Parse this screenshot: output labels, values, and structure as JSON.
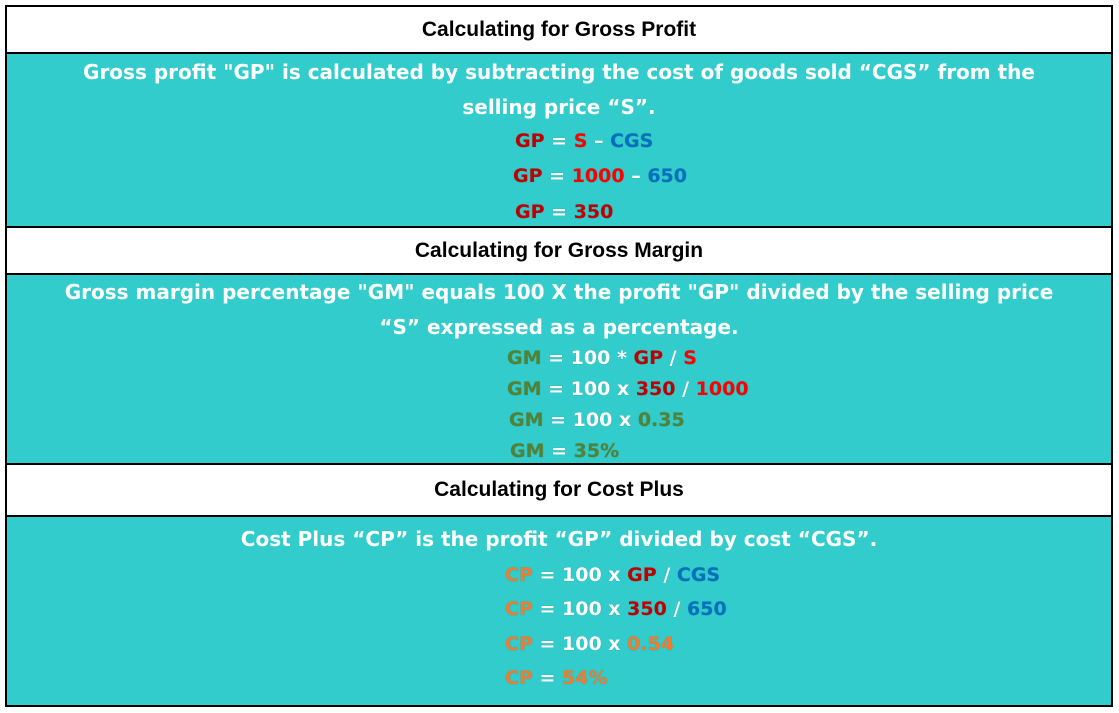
{
  "colors": {
    "gp": "#c00000",
    "s": "#ff0000",
    "cgs": "#0070c0",
    "gm": "#548235",
    "cp": "#ed7d31",
    "panel_bg": "#33cccc"
  },
  "gross_profit": {
    "header": "Calculating for Gross Profit",
    "desc_line1": "Gross profit \"GP\" is calculated by subtracting the cost of goods sold “CGS” from the",
    "desc_line2": "selling price “S”.",
    "f1": {
      "lhs": "GP",
      "eq": " = ",
      "a": "S",
      "op": " – ",
      "b": "CGS"
    },
    "f2": {
      "lhs": "GP",
      "eq": " = ",
      "a": "1000",
      "op": " – ",
      "b": "650"
    },
    "f3": {
      "lhs": "GP",
      "eq": " = ",
      "a": "350"
    }
  },
  "gross_margin": {
    "header": "Calculating for Gross Margin",
    "desc_line1": "Gross margin percentage \"GM\" equals 100 X the profit \"GP\" divided by the selling price",
    "desc_line2": "“S” expressed as a percentage.",
    "f1": {
      "lhs": "GM",
      "eq": " = 100 * ",
      "a": "GP",
      "op": " / ",
      "b": "S"
    },
    "f2": {
      "lhs": "GM",
      "eq": " = 100 x ",
      "a": "350",
      "op": " / ",
      "b": "1000"
    },
    "f3": {
      "lhs": "GM",
      "eq": " = 100 x ",
      "a": "0.35"
    },
    "f4": {
      "lhs": "GM",
      "eq": " = ",
      "a": "35%"
    }
  },
  "cost_plus": {
    "header": "Calculating for Cost Plus",
    "desc_line1": "Cost Plus “CP” is the profit “GP” divided by cost “CGS”.",
    "f1": {
      "lhs": "CP",
      "eq": " = 100 x ",
      "a": "GP",
      "op": " / ",
      "b": "CGS"
    },
    "f2": {
      "lhs": "CP",
      "eq": " = 100 x ",
      "a": "350",
      "op": " / ",
      "b": "650"
    },
    "f3": {
      "lhs": "CP",
      "eq": " = 100 x ",
      "a": "0.54"
    },
    "f4": {
      "lhs": "CP",
      "eq": " = ",
      "a": "54%"
    }
  }
}
